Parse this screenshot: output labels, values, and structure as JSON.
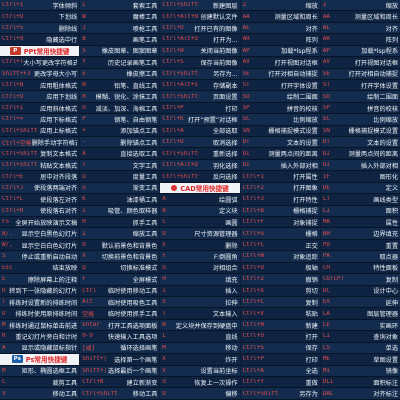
{
  "columns": [
    {
      "rows": [
        {
          "key": "Ctrl+I",
          "desc": "字体倾斜"
        },
        {
          "key": "Ctrl+U",
          "desc": "下划线"
        },
        {
          "key": "Ctrl+5",
          "desc": "删除线"
        },
        {
          "key": "Ctrl+9",
          "desc": "隐藏选中行"
        },
        {
          "header": true,
          "badge": "P",
          "label": "PPt常用快捷键"
        },
        {
          "key": "Ctrl+T",
          "desc": "大小写更改字符格式"
        },
        {
          "key": "Shift+F3",
          "desc": "更改字母大小写"
        },
        {
          "key": "Ctrl+B",
          "desc": "应用粗体格式"
        },
        {
          "key": "Ctrl+U",
          "desc": "应用下划线"
        },
        {
          "key": "Ctrl+I",
          "desc": "应用斜体格式"
        },
        {
          "key": "Ctrl+=",
          "desc": "应用下标格式"
        },
        {
          "key": "Ctrl+Shift++",
          "desc": "应用上标格式"
        },
        {
          "key": "Ctrl+空格",
          "desc": "删除手动字符格式"
        },
        {
          "key": "Ctrl+Shift+C",
          "desc": "复制文本格式"
        },
        {
          "key": "Ctrl+Shift+V",
          "desc": "粘贴文本格式"
        },
        {
          "key": "Ctrl+E",
          "desc": "居中对齐段落"
        },
        {
          "key": "Ctrl+J",
          "desc": "使段落两端对齐"
        },
        {
          "key": "Ctrl+L",
          "desc": "使段落左对齐"
        },
        {
          "key": "Ctrl+R",
          "desc": "使段落右对齐"
        },
        {
          "key": "F5",
          "desc": "全屏开始放映演示文稿"
        },
        {
          "key": "B/.",
          "desc": "显示空白黑色幻灯片"
        },
        {
          "key": "W/,",
          "desc": "显示空白白色幻灯片"
        },
        {
          "key": "S",
          "desc": "停止或重新启动自动"
        },
        {
          "key": "Esc",
          "desc": "结束放映"
        },
        {
          "key": "E",
          "desc": "擦除屏幕上的注释"
        },
        {
          "key": "H",
          "desc": "转到下一张隐藏的幻灯片"
        },
        {
          "key": "T",
          "desc": "排练时设置新的排练时间"
        },
        {
          "key": "O",
          "desc": "排练时使用原排练时间"
        },
        {
          "key": "M",
          "desc": "排练时通过鼠标单击前进"
        },
        {
          "key": "R",
          "desc": "重记幻灯片旁白和计时"
        },
        {
          "key": "A",
          "desc": "显示或隐藏鼠标指针"
        },
        {
          "header": true,
          "badge": "Ps",
          "badgeStyle": "ps",
          "label": "Ps常用快捷键"
        },
        {
          "key": "M",
          "desc": "矩形、椭圆选框工具"
        },
        {
          "key": "C",
          "desc": "裁剪工具"
        },
        {
          "key": "V",
          "desc": "移动工具"
        }
      ]
    },
    {
      "rows": [
        {
          "key": "L",
          "desc": "套索工具"
        },
        {
          "key": "W",
          "desc": "魔棒工具"
        },
        {
          "key": "J",
          "desc": "喷枪工具"
        },
        {
          "key": "B",
          "desc": "画笔工具"
        },
        {
          "key": "S",
          "desc": "橡皮图章、图案图章"
        },
        {
          "key": "Y",
          "desc": "历史记录画笔工具"
        },
        {
          "key": "E",
          "desc": "橡皮擦工具"
        },
        {
          "key": "N",
          "desc": "铅笔、直线工具"
        },
        {
          "key": "R",
          "desc": "模糊、锐化、涂抹工具"
        },
        {
          "key": "O",
          "desc": "减淡、加深、海棉工具"
        },
        {
          "key": "P",
          "desc": "钢笔、自由钢笔"
        },
        {
          "key": "+",
          "desc": "添加锚点工具"
        },
        {
          "key": "-",
          "desc": "删除锚点工具"
        },
        {
          "key": "A",
          "desc": "直接选取工具"
        },
        {
          "key": "T",
          "desc": "文字工具"
        },
        {
          "key": "U",
          "desc": "度量工具"
        },
        {
          "key": "G",
          "desc": "渐变工具"
        },
        {
          "key": "K",
          "desc": "油漆桶工具"
        },
        {
          "key": "I",
          "desc": "吸管、颜色取样器"
        },
        {
          "key": "H",
          "desc": "抓手工具"
        },
        {
          "key": "Z",
          "desc": "缩放工具"
        },
        {
          "key": "D",
          "desc": "默认前景色和背景色"
        },
        {
          "key": "X",
          "desc": "切换前景色和背景色"
        },
        {
          "key": "Q",
          "desc": "切换标准模式"
        },
        {
          "key": "F",
          "desc": "全屏模式"
        },
        {
          "key": "Ctrl",
          "desc": "临时使用移动工具"
        },
        {
          "key": "Alt",
          "desc": "临时使用吸色工具"
        },
        {
          "key": "空格",
          "desc": "临时使用抓手工具"
        },
        {
          "key": "Enter",
          "desc": "打开工具选项面板"
        },
        {
          "key": "0-9",
          "desc": "快速输入工具选项"
        },
        {
          "key": "[或]",
          "desc": "循环选择画笔"
        },
        {
          "key": "Shift+[",
          "desc": "选择第一个画笔"
        },
        {
          "key": "Shift+]",
          "desc": "选择最后一个画笔"
        },
        {
          "key": "Ctrl+N",
          "desc": "建立新渐变"
        },
        {
          "key": "Ctrl+Shift+N",
          "desc": "移动工具"
        }
      ]
    },
    {
      "rows": [
        {
          "key": "Ctrl+Shift+N",
          "desc": "新建图层"
        },
        {
          "key": "Ctrl+Alt+N",
          "desc": "创建默认文件"
        },
        {
          "key": "Ctrl+O",
          "desc": "打开已有的图像"
        },
        {
          "key": "Ctrl+Alt+O",
          "desc": "打开为..."
        },
        {
          "key": "Ctrl+W",
          "desc": "关闭当前图像"
        },
        {
          "key": "Ctrl+S",
          "desc": "保存当前图像"
        },
        {
          "key": "Ctrl+Shift+S",
          "desc": "另存为..."
        },
        {
          "key": "Ctrl+Alt+S",
          "desc": "存储副本"
        },
        {
          "key": "Ctrl+Shift+P",
          "desc": "页面设置"
        },
        {
          "key": "Ctrl+P",
          "desc": "打印"
        },
        {
          "key": "Ctrl+K",
          "desc": "打开“预置”对话框"
        },
        {
          "key": "Ctrl+A",
          "desc": "全部选取"
        },
        {
          "key": "Ctrl+D",
          "desc": "取消选择"
        },
        {
          "key": "Ctrl+Shift+D",
          "desc": "重新选择"
        },
        {
          "key": "Ctrl+Alt+D",
          "desc": "羽化选择"
        },
        {
          "key": "Ctrl+Shift+I",
          "desc": "反向选择"
        },
        {
          "header": true,
          "badge": "",
          "badgeStyle": "cad",
          "label": "CAD常用快捷键"
        },
        {
          "key": "A",
          "desc": "绘圆弧"
        },
        {
          "key": "B",
          "desc": "定义块"
        },
        {
          "key": "C",
          "desc": "画圆"
        },
        {
          "key": "D",
          "desc": "尺寸资源管理器"
        },
        {
          "key": "E",
          "desc": "删除"
        },
        {
          "key": "F",
          "desc": "F:倒圆角"
        },
        {
          "key": "G",
          "desc": "对相组合"
        },
        {
          "key": "H",
          "desc": "填充"
        },
        {
          "key": "I",
          "desc": "插入"
        },
        {
          "key": "S",
          "desc": "拉伸"
        },
        {
          "key": "T",
          "desc": "文本输入"
        },
        {
          "key": "W",
          "desc": "定义块并保存到硬盘中"
        },
        {
          "key": "L",
          "desc": "直线"
        },
        {
          "key": "M",
          "desc": "移动"
        },
        {
          "key": "X",
          "desc": "炸开"
        },
        {
          "key": "V",
          "desc": "设置当前坐标"
        },
        {
          "key": "U",
          "desc": "恢复上一次操作"
        },
        {
          "key": "O",
          "desc": "偏移"
        }
      ]
    },
    {
      "rows": [
        {
          "key": "Z",
          "desc": "缩放"
        },
        {
          "key": "AA",
          "desc": "测量区域和周长"
        },
        {
          "key": "AL",
          "desc": "对齐"
        },
        {
          "key": "AR",
          "desc": "阵列"
        },
        {
          "key": "AP",
          "desc": "加载*lsp程系"
        },
        {
          "key": "AV",
          "desc": "打开视图对话框"
        },
        {
          "key": "SE",
          "desc": "打开对相自动捕捉"
        },
        {
          "key": "ST",
          "desc": "打开字体设置"
        },
        {
          "key": "SO",
          "desc": "绘制二围面"
        },
        {
          "key": "SP",
          "desc": "拼音的校核"
        },
        {
          "key": "SC",
          "desc": "比例缩放"
        },
        {
          "key": "SN",
          "desc": "栅格捕捉模式设置"
        },
        {
          "key": "DT",
          "desc": "文本的设置"
        },
        {
          "key": "DI",
          "desc": "测量两点间的距离"
        },
        {
          "key": "OI",
          "desc": "插入外部对相"
        },
        {
          "key": "Ctrl+1",
          "desc": "打开属性"
        },
        {
          "key": "Ctrl+2",
          "desc": "打开图象"
        },
        {
          "key": "Ctrl+3",
          "desc": "打开特性"
        },
        {
          "key": "Ctrl+B",
          "desc": "栅格捕捉"
        },
        {
          "key": "Ctrl+F",
          "desc": "对象捕捉"
        },
        {
          "key": "Ctrl+G",
          "desc": "栅格"
        },
        {
          "key": "Ctrl+L",
          "desc": "正交"
        },
        {
          "key": "Ctrl+W",
          "desc": "对象追踪"
        },
        {
          "key": "Ctrl+U",
          "desc": "极轴"
        },
        {
          "key": "Ctrl+Z",
          "desc": "撤销"
        },
        {
          "key": "Ctrl+X",
          "desc": "剪切"
        },
        {
          "key": "Ctrl+C",
          "desc": "复制"
        },
        {
          "key": "Ctrl+V",
          "desc": "粘贴"
        },
        {
          "key": "Ctrl+N",
          "desc": "新建"
        },
        {
          "key": "Ctrl+O",
          "desc": "打开"
        },
        {
          "key": "Ctrl+S",
          "desc": "保存"
        },
        {
          "key": "Ctrl+P",
          "desc": "打印"
        },
        {
          "key": "Ctrl+A",
          "desc": "全选"
        },
        {
          "key": "Ctrl+Y",
          "desc": "重做"
        },
        {
          "key": "Ctrl+Shift+S",
          "desc": "另存为"
        }
      ]
    },
    {
      "rows": [
        {
          "key": "Z",
          "desc": "缩放"
        },
        {
          "key": "AA",
          "desc": "测量区域和周长"
        },
        {
          "key": "AL",
          "desc": "对齐"
        },
        {
          "key": "AR",
          "desc": "阵列"
        },
        {
          "key": "AP",
          "desc": "加载*lsp程系"
        },
        {
          "key": "AV",
          "desc": "打开视图对话框"
        },
        {
          "key": "SE",
          "desc": "打开对相自动捕捉"
        },
        {
          "key": "ST",
          "desc": "打开字体设置"
        },
        {
          "key": "SO",
          "desc": "绘制二围面"
        },
        {
          "key": "SP",
          "desc": "拼音的校核"
        },
        {
          "key": "SC",
          "desc": "比例缩放"
        },
        {
          "key": "SN",
          "desc": "栅格捕捉模式设置"
        },
        {
          "key": "DT",
          "desc": "文本的设置"
        },
        {
          "key": "DI",
          "desc": "测量两点间的距离"
        },
        {
          "key": "OI",
          "desc": "插入外部对相"
        },
        {
          "key": "1F",
          "desc": "图形化"
        },
        {
          "key": "DE",
          "desc": "定义"
        },
        {
          "key": "LT",
          "desc": "画线类型"
        },
        {
          "key": "LI",
          "desc": "面积"
        },
        {
          "key": "MA",
          "desc": "属性"
        },
        {
          "key": "BH",
          "desc": "边界填充"
        },
        {
          "key": "PD",
          "desc": "重置"
        },
        {
          "key": "PA",
          "desc": "取点器"
        },
        {
          "key": "CH",
          "desc": "特性面板"
        },
        {
          "key": "CO(CP)",
          "desc": "复制"
        },
        {
          "key": "DC",
          "desc": "设计中心"
        },
        {
          "key": "EX",
          "desc": "延伸"
        },
        {
          "key": "LA",
          "desc": "图层管理器"
        },
        {
          "key": "LE",
          "desc": "实画环"
        },
        {
          "key": "LI",
          "desc": "查询对象"
        },
        {
          "key": "LS",
          "desc": "单选"
        },
        {
          "key": "ME",
          "desc": "草图设置"
        },
        {
          "key": "MI",
          "desc": "镜像"
        },
        {
          "key": "DLI",
          "desc": "面积标注"
        },
        {
          "key": "DAL",
          "desc": "对齐标注"
        }
      ]
    }
  ]
}
